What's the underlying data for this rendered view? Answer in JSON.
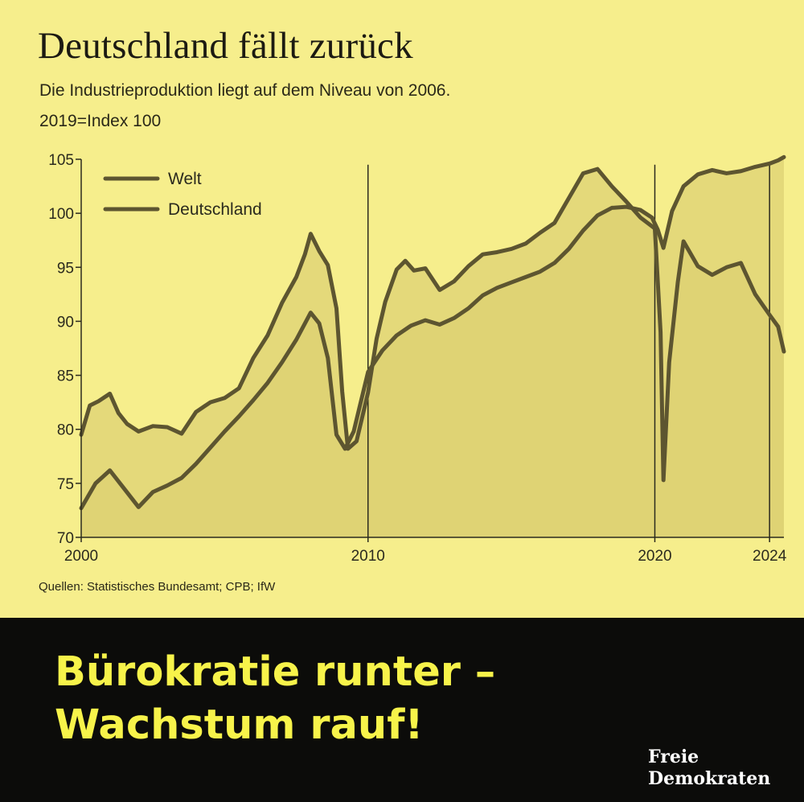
{
  "header": {
    "title": "Deutschland fällt zurück",
    "subtitle": "Die Industrieproduktion liegt auf dem Niveau von 2006.",
    "index_note": "2019=Index 100"
  },
  "source": "Quellen: Statistisches Bundesamt; CPB; IfW",
  "banner": {
    "line1": "Bürokratie runter –",
    "line2": "Wachstum rauf!",
    "brand_line1": "Freie",
    "brand_line2": "Demokraten"
  },
  "colors": {
    "background": "#f6ee8c",
    "area_fill": "#ddd072",
    "line": "#5d5530",
    "axis": "#2b2a1e",
    "banner_bg": "#0c0c0a",
    "banner_text": "#f7f34a"
  },
  "chart_data": {
    "type": "line",
    "title": "Deutschland fällt zurück",
    "subtitle": "Die Industrieproduktion liegt auf dem Niveau von 2006.",
    "note": "2019=Index 100",
    "xlim": [
      2000,
      2024.5
    ],
    "ylim": [
      70,
      105
    ],
    "y_ticks": [
      70,
      75,
      80,
      85,
      90,
      95,
      100,
      105
    ],
    "x_ticks": [
      2000,
      2010,
      2020,
      2024
    ],
    "x_tick_labels": [
      "2000",
      "2010",
      "2020",
      "2024"
    ],
    "reference_lines_x": [
      2010,
      2020,
      2024
    ],
    "legend": {
      "position": "top-left",
      "entries": [
        "Welt",
        "Deutschland"
      ]
    },
    "series": [
      {
        "name": "Welt",
        "x": [
          2000,
          2000.5,
          2001,
          2001.5,
          2002,
          2002.5,
          2003,
          2003.5,
          2004,
          2004.5,
          2005,
          2005.5,
          2006,
          2006.5,
          2007,
          2007.5,
          2008,
          2008.3,
          2008.6,
          2008.9,
          2009.2,
          2009.5,
          2010,
          2010.5,
          2011,
          2011.5,
          2012,
          2012.5,
          2013,
          2013.5,
          2014,
          2014.5,
          2015,
          2015.5,
          2016,
          2016.5,
          2017,
          2017.5,
          2018,
          2018.5,
          2019,
          2019.5,
          2019.9,
          2020.1,
          2020.3,
          2020.6,
          2021,
          2021.5,
          2022,
          2022.5,
          2023,
          2023.5,
          2024,
          2024.3,
          2024.5
        ],
        "values": [
          72.7,
          75,
          76.2,
          74.5,
          72.8,
          74.2,
          74.8,
          75.5,
          76.8,
          78.3,
          79.8,
          81.2,
          82.7,
          84.3,
          86.2,
          88.3,
          90.8,
          89.8,
          86.6,
          79.5,
          78.2,
          79.8,
          85.3,
          87.3,
          88.7,
          89.6,
          90.1,
          89.7,
          90.3,
          91.2,
          92.4,
          93.1,
          93.6,
          94.1,
          94.6,
          95.4,
          96.7,
          98.4,
          99.8,
          100.5,
          100.6,
          100.3,
          99.6,
          98.5,
          96.8,
          100.2,
          102.5,
          103.6,
          104.0,
          103.7,
          103.9,
          104.3,
          104.6,
          104.9,
          105.2
        ]
      },
      {
        "name": "Deutschland",
        "x": [
          2000,
          2000.3,
          2000.6,
          2001,
          2001.3,
          2001.6,
          2002,
          2002.5,
          2003,
          2003.5,
          2004,
          2004.5,
          2005,
          2005.5,
          2006,
          2006.5,
          2007,
          2007.5,
          2007.8,
          2008,
          2008.3,
          2008.6,
          2008.9,
          2009.1,
          2009.3,
          2009.6,
          2010,
          2010.3,
          2010.6,
          2011,
          2011.3,
          2011.6,
          2012,
          2012.5,
          2013,
          2013.5,
          2014,
          2014.5,
          2015,
          2015.5,
          2016,
          2016.5,
          2017,
          2017.5,
          2018,
          2018.5,
          2019,
          2019.5,
          2020,
          2020.2,
          2020.3,
          2020.5,
          2020.8,
          2021,
          2021.5,
          2022,
          2022.5,
          2023,
          2023.5,
          2024,
          2024.3,
          2024.5
        ],
        "values": [
          79.5,
          82.2,
          82.6,
          83.3,
          81.5,
          80.5,
          79.8,
          80.3,
          80.2,
          79.6,
          81.6,
          82.5,
          82.9,
          83.8,
          86.6,
          88.7,
          91.7,
          94.1,
          96.2,
          98.1,
          96.5,
          95.2,
          91.2,
          83.5,
          78.2,
          78.9,
          83.4,
          88.4,
          91.8,
          94.8,
          95.6,
          94.7,
          94.9,
          92.9,
          93.7,
          95.1,
          96.2,
          96.4,
          96.7,
          97.2,
          98.2,
          99.1,
          101.4,
          103.7,
          104.1,
          102.5,
          101.1,
          99.6,
          98.6,
          89.0,
          75.3,
          86.2,
          93.6,
          97.4,
          95.1,
          94.3,
          95.0,
          95.4,
          92.5,
          90.6,
          89.5,
          87.2
        ]
      }
    ]
  }
}
